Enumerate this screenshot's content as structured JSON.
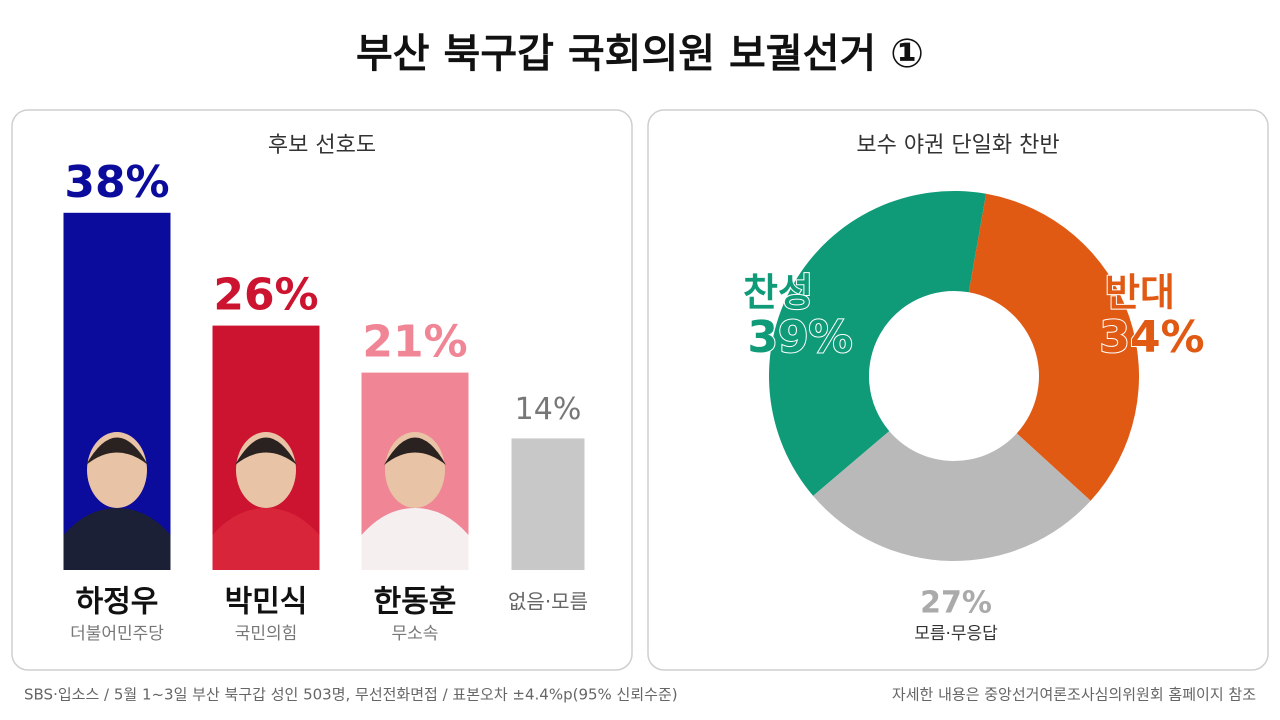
{
  "title": "부산 북구갑 국회의원 보궐선거 ①",
  "chart_data": [
    {
      "type": "bar",
      "title": "후보 선호도",
      "categories": [
        "하정우",
        "박민식",
        "한동훈",
        "없음·모름"
      ],
      "parties": [
        "더불어민주당",
        "국민의힘",
        "무소속",
        null
      ],
      "values": [
        38,
        26,
        21,
        14
      ],
      "value_labels": [
        "38%",
        "26%",
        "21%",
        "14%"
      ],
      "colors": [
        "#0b0b9c",
        "#cc1431",
        "#f08596",
        "#c8c8c8"
      ]
    },
    {
      "type": "donut",
      "title": "보수 야권 단일화 찬반",
      "categories": [
        "찬성",
        "반대",
        "모름·무응답"
      ],
      "values": [
        39,
        34,
        27
      ],
      "value_labels": [
        "39%",
        "34%",
        "27%"
      ],
      "colors": [
        "#0f9a78",
        "#e05a14",
        "#b9b9b9"
      ]
    }
  ],
  "footer": {
    "source": "SBS·입소스 / 5월 1~3일 부산 북구갑 성인 503명, 무선전화면접 / 표본오차 ±4.4%p(95% 신뢰수준)",
    "note": "자세한 내용은 중앙선거여론조사심의위원회 홈페이지 참조"
  }
}
